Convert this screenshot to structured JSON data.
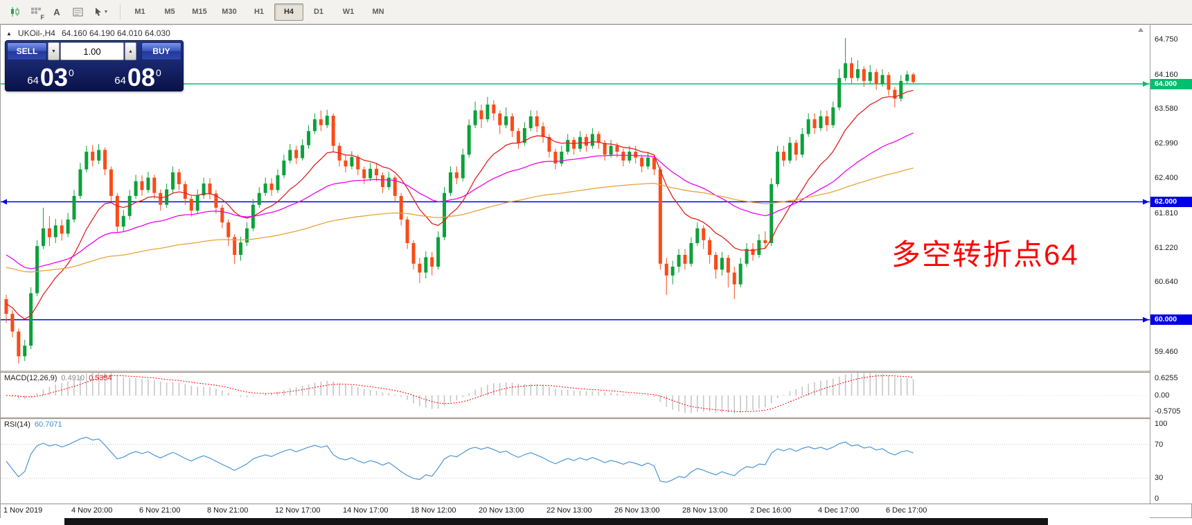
{
  "toolbar": {
    "icon_letters": {
      "f": "F",
      "a": "A"
    },
    "cursor_caret": "▼",
    "timeframes": [
      {
        "label": "M1",
        "active": false
      },
      {
        "label": "M5",
        "active": false
      },
      {
        "label": "M15",
        "active": false
      },
      {
        "label": "M30",
        "active": false
      },
      {
        "label": "H1",
        "active": false
      },
      {
        "label": "H4",
        "active": true
      },
      {
        "label": "D1",
        "active": false
      },
      {
        "label": "W1",
        "active": false
      },
      {
        "label": "MN",
        "active": false
      }
    ]
  },
  "symbol_header": {
    "collapse_icon": "▲",
    "symbol": "UKOil-,H4",
    "ohlc": "64.160 64.190 64.010 64.030"
  },
  "trade_panel": {
    "sell_label": "SELL",
    "buy_label": "BUY",
    "volume": "1.00",
    "volume_down_icon": "▼",
    "volume_up_icon": "▲",
    "sell_price": {
      "small": "64",
      "big": "03",
      "sup": "0"
    },
    "buy_price": {
      "small": "64",
      "big": "08",
      "sup": "0"
    }
  },
  "annotation": {
    "text": "多空转折点64",
    "color": "#ff0000"
  },
  "chart_data": {
    "type": "candlestick",
    "symbol": "UKOil-",
    "timeframe": "H4",
    "current_ohlc": {
      "open": 64.16,
      "high": 64.19,
      "low": 64.01,
      "close": 64.03
    },
    "ylim": [
      59.15,
      65.0
    ],
    "up_color": "#0ca13a",
    "down_color": "#fa4b18",
    "price_gridlines": [
      64.75,
      64.16,
      63.58,
      62.99,
      62.4,
      61.81,
      61.22,
      60.64,
      59.46
    ],
    "hlines": [
      {
        "price": 64.0,
        "label": "64.000",
        "color": "#00bf6e",
        "left_marker": false
      },
      {
        "price": 62.0,
        "label": "62.000",
        "color": "#0000e6",
        "left_marker": true
      },
      {
        "price": 60.0,
        "label": "60.000",
        "color": "#0000e6",
        "left_marker": false
      }
    ],
    "overlays": [
      {
        "name": "ma-fast-red",
        "type": "ema",
        "period": 13,
        "seed": 60.3,
        "color": "#e02020"
      },
      {
        "name": "ma-mid-magenta",
        "type": "ema",
        "period": 40,
        "seed": 61.15,
        "color": "#ee00ee"
      },
      {
        "name": "ma-slow-orange",
        "type": "ema",
        "period": 110,
        "seed": 60.9,
        "color": "#e8a33a"
      }
    ],
    "time_labels": [
      "1 Nov 2019",
      "4 Nov 20:00",
      "6 Nov 21:00",
      "8 Nov 21:00",
      "12 Nov 17:00",
      "14 Nov 17:00",
      "18 Nov 12:00",
      "20 Nov 13:00",
      "22 Nov 13:00",
      "26 Nov 13:00",
      "28 Nov 13:00",
      "2 Dec 16:00",
      "4 Dec 17:00",
      "6 Dec 17:00"
    ],
    "macd": {
      "label": "MACD(12,26,9)",
      "values_text": [
        "0.4910",
        "0.5354"
      ],
      "fast": 12,
      "slow": 26,
      "signal": 9,
      "ylim": [
        -0.5705,
        0.6255
      ],
      "scale_labels": [
        "0.6255",
        "0.00",
        "-0.5705"
      ],
      "hist_color": "#c6c6c6",
      "signal_color": "#ff0000"
    },
    "rsi": {
      "label": "RSI(14)",
      "value_text": "60.7071",
      "period": 14,
      "ylim": [
        0,
        100
      ],
      "levels": [
        70,
        30
      ],
      "scale_labels": [
        "100",
        "70",
        "30",
        "0"
      ],
      "color": "#4a94d8"
    },
    "candles": [
      [
        60.35,
        60.42,
        59.95,
        60.1
      ],
      [
        60.1,
        60.16,
        59.7,
        59.8
      ],
      [
        59.8,
        59.85,
        59.26,
        59.38
      ],
      [
        59.38,
        59.66,
        59.3,
        59.56
      ],
      [
        59.56,
        60.55,
        59.5,
        60.45
      ],
      [
        60.45,
        61.35,
        60.4,
        61.25
      ],
      [
        61.25,
        61.9,
        61.2,
        61.55
      ],
      [
        61.55,
        61.76,
        61.25,
        61.4
      ],
      [
        61.4,
        61.71,
        61.3,
        61.6
      ],
      [
        61.6,
        61.7,
        61.34,
        61.46
      ],
      [
        61.46,
        61.81,
        61.4,
        61.7
      ],
      [
        61.7,
        62.2,
        61.65,
        62.1
      ],
      [
        62.1,
        62.66,
        62.05,
        62.55
      ],
      [
        62.55,
        62.95,
        62.5,
        62.85
      ],
      [
        62.85,
        62.96,
        62.6,
        62.7
      ],
      [
        62.7,
        62.98,
        62.64,
        62.88
      ],
      [
        62.88,
        62.92,
        62.45,
        62.55
      ],
      [
        62.55,
        62.6,
        62.0,
        62.1
      ],
      [
        62.1,
        62.15,
        61.48,
        61.58
      ],
      [
        61.58,
        61.86,
        61.5,
        61.76
      ],
      [
        61.76,
        62.2,
        61.7,
        62.1
      ],
      [
        62.1,
        62.46,
        62.05,
        62.35
      ],
      [
        62.35,
        62.45,
        62.1,
        62.2
      ],
      [
        62.2,
        62.51,
        62.15,
        62.41
      ],
      [
        62.41,
        62.46,
        62.05,
        62.15
      ],
      [
        62.15,
        62.21,
        61.85,
        61.95
      ],
      [
        61.95,
        62.31,
        61.9,
        62.21
      ],
      [
        62.21,
        62.6,
        62.15,
        62.5
      ],
      [
        62.5,
        62.56,
        62.2,
        62.3
      ],
      [
        62.3,
        62.35,
        61.95,
        62.05
      ],
      [
        62.05,
        62.1,
        61.75,
        61.85
      ],
      [
        61.85,
        62.21,
        61.8,
        62.11
      ],
      [
        62.11,
        62.41,
        62.05,
        62.31
      ],
      [
        62.31,
        62.4,
        62.04,
        62.14
      ],
      [
        62.14,
        62.2,
        61.8,
        61.9
      ],
      [
        61.9,
        61.95,
        61.55,
        61.65
      ],
      [
        61.65,
        61.7,
        61.25,
        61.4
      ],
      [
        61.4,
        61.45,
        60.95,
        61.1
      ],
      [
        61.1,
        61.41,
        61.0,
        61.31
      ],
      [
        61.31,
        61.65,
        61.25,
        61.55
      ],
      [
        61.55,
        62.05,
        61.5,
        61.95
      ],
      [
        61.95,
        62.25,
        61.9,
        62.15
      ],
      [
        62.15,
        62.41,
        62.1,
        62.31
      ],
      [
        62.31,
        62.4,
        62.1,
        62.2
      ],
      [
        62.2,
        62.55,
        62.15,
        62.45
      ],
      [
        62.45,
        62.8,
        62.4,
        62.7
      ],
      [
        62.7,
        62.98,
        62.65,
        62.88
      ],
      [
        62.88,
        62.95,
        62.64,
        62.74
      ],
      [
        62.74,
        63.06,
        62.7,
        62.96
      ],
      [
        62.96,
        63.3,
        62.9,
        63.2
      ],
      [
        63.2,
        63.5,
        63.15,
        63.4
      ],
      [
        63.4,
        63.55,
        63.2,
        63.3
      ],
      [
        63.3,
        63.56,
        63.25,
        63.46
      ],
      [
        63.46,
        63.5,
        62.85,
        62.95
      ],
      [
        62.95,
        63.0,
        62.6,
        62.7
      ],
      [
        62.7,
        62.8,
        62.5,
        62.6
      ],
      [
        62.6,
        62.86,
        62.55,
        62.76
      ],
      [
        62.76,
        62.8,
        62.45,
        62.55
      ],
      [
        62.55,
        62.6,
        62.3,
        62.4
      ],
      [
        62.4,
        62.66,
        62.35,
        62.56
      ],
      [
        62.56,
        62.65,
        62.35,
        62.45
      ],
      [
        62.45,
        62.5,
        62.15,
        62.25
      ],
      [
        62.25,
        62.51,
        62.2,
        62.41
      ],
      [
        62.41,
        62.45,
        62.0,
        62.1
      ],
      [
        62.1,
        62.15,
        61.6,
        61.7
      ],
      [
        61.7,
        61.75,
        61.2,
        61.3
      ],
      [
        61.3,
        61.35,
        60.85,
        60.95
      ],
      [
        60.95,
        61.05,
        60.62,
        60.8
      ],
      [
        60.8,
        61.16,
        60.7,
        61.06
      ],
      [
        61.06,
        61.15,
        60.75,
        60.9
      ],
      [
        60.9,
        61.5,
        60.85,
        61.4
      ],
      [
        61.4,
        62.25,
        61.35,
        62.15
      ],
      [
        62.15,
        62.6,
        62.1,
        62.5
      ],
      [
        62.5,
        62.6,
        62.3,
        62.4
      ],
      [
        62.4,
        62.9,
        62.35,
        62.8
      ],
      [
        62.8,
        63.4,
        62.75,
        63.3
      ],
      [
        63.3,
        63.7,
        63.25,
        63.55
      ],
      [
        63.55,
        63.65,
        63.25,
        63.4
      ],
      [
        63.4,
        63.78,
        63.35,
        63.65
      ],
      [
        63.65,
        63.72,
        63.38,
        63.5
      ],
      [
        63.5,
        63.55,
        63.15,
        63.3
      ],
      [
        63.3,
        63.6,
        63.25,
        63.45
      ],
      [
        63.45,
        63.5,
        63.1,
        63.2
      ],
      [
        63.2,
        63.25,
        62.9,
        63.0
      ],
      [
        63.0,
        63.35,
        62.95,
        63.25
      ],
      [
        63.25,
        63.55,
        63.2,
        63.45
      ],
      [
        63.45,
        63.55,
        63.18,
        63.28
      ],
      [
        63.28,
        63.35,
        63.0,
        63.1
      ],
      [
        63.1,
        63.15,
        62.75,
        62.85
      ],
      [
        62.85,
        62.9,
        62.55,
        62.65
      ],
      [
        62.65,
        62.95,
        62.6,
        62.85
      ],
      [
        62.85,
        63.15,
        62.8,
        63.05
      ],
      [
        63.05,
        63.1,
        62.8,
        62.9
      ],
      [
        62.9,
        63.2,
        62.85,
        63.1
      ],
      [
        63.1,
        63.15,
        62.85,
        62.95
      ],
      [
        62.95,
        63.25,
        62.9,
        63.15
      ],
      [
        63.15,
        63.2,
        62.9,
        63.0
      ],
      [
        63.0,
        63.05,
        62.7,
        62.8
      ],
      [
        62.8,
        63.05,
        62.75,
        62.95
      ],
      [
        62.95,
        63.0,
        62.75,
        62.85
      ],
      [
        62.85,
        62.9,
        62.6,
        62.7
      ],
      [
        62.7,
        62.95,
        62.65,
        62.85
      ],
      [
        62.85,
        62.95,
        62.65,
        62.75
      ],
      [
        62.75,
        62.8,
        62.5,
        62.6
      ],
      [
        62.6,
        62.85,
        62.55,
        62.75
      ],
      [
        62.75,
        62.8,
        62.45,
        62.55
      ],
      [
        62.55,
        62.6,
        60.85,
        60.95
      ],
      [
        60.95,
        61.05,
        60.42,
        60.75
      ],
      [
        60.75,
        61.0,
        60.6,
        60.9
      ],
      [
        60.9,
        61.2,
        60.8,
        61.1
      ],
      [
        61.1,
        61.2,
        60.85,
        60.95
      ],
      [
        60.95,
        61.4,
        60.9,
        61.3
      ],
      [
        61.3,
        61.65,
        61.25,
        61.55
      ],
      [
        61.55,
        61.6,
        61.2,
        61.35
      ],
      [
        61.35,
        61.4,
        60.95,
        61.1
      ],
      [
        61.1,
        61.15,
        60.7,
        60.85
      ],
      [
        60.85,
        61.15,
        60.75,
        61.05
      ],
      [
        61.05,
        61.1,
        60.55,
        60.8
      ],
      [
        60.8,
        60.9,
        60.35,
        60.6
      ],
      [
        60.6,
        61.05,
        60.55,
        60.95
      ],
      [
        60.95,
        61.3,
        60.9,
        61.2
      ],
      [
        61.2,
        61.3,
        61.0,
        61.1
      ],
      [
        61.1,
        61.45,
        61.05,
        61.35
      ],
      [
        61.35,
        61.5,
        61.2,
        61.3
      ],
      [
        61.3,
        62.4,
        61.25,
        62.3
      ],
      [
        62.3,
        62.95,
        62.25,
        62.85
      ],
      [
        62.85,
        62.95,
        62.6,
        62.7
      ],
      [
        62.7,
        63.1,
        62.65,
        63.0
      ],
      [
        63.0,
        63.05,
        62.7,
        62.8
      ],
      [
        62.8,
        63.25,
        62.75,
        63.15
      ],
      [
        63.15,
        63.5,
        63.1,
        63.4
      ],
      [
        63.4,
        63.5,
        63.15,
        63.25
      ],
      [
        63.25,
        63.55,
        63.2,
        63.45
      ],
      [
        63.45,
        63.55,
        63.2,
        63.3
      ],
      [
        63.3,
        63.7,
        63.25,
        63.6
      ],
      [
        63.6,
        64.25,
        63.55,
        64.1
      ],
      [
        64.1,
        64.78,
        64.05,
        64.35
      ],
      [
        64.35,
        64.45,
        64.0,
        64.1
      ],
      [
        64.1,
        64.4,
        64.05,
        64.25
      ],
      [
        64.25,
        64.3,
        63.95,
        64.05
      ],
      [
        64.05,
        64.32,
        64.0,
        64.2
      ],
      [
        64.2,
        64.25,
        63.9,
        64.0
      ],
      [
        64.0,
        64.25,
        63.95,
        64.15
      ],
      [
        64.15,
        64.2,
        63.8,
        63.9
      ],
      [
        63.9,
        63.95,
        63.6,
        63.75
      ],
      [
        63.75,
        64.15,
        63.7,
        64.05
      ],
      [
        64.05,
        64.22,
        64.0,
        64.16
      ],
      [
        64.16,
        64.19,
        64.01,
        64.03
      ]
    ]
  }
}
